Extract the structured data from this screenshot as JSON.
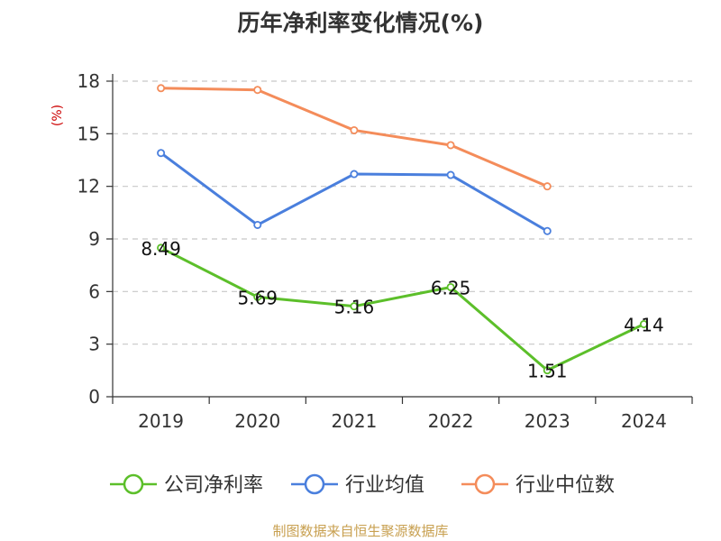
{
  "title": "历年净利率变化情况(%)",
  "source": "制图数据来自恒生聚源数据库",
  "chart_data": {
    "type": "line",
    "title": "历年净利率变化情况(%)",
    "ylabel": "(%)",
    "xlabel": "",
    "ylim": [
      0,
      18
    ],
    "yticks": [
      0,
      3,
      6,
      9,
      12,
      15,
      18
    ],
    "grid": true,
    "legend_position": "bottom",
    "categories": [
      "2019",
      "2020",
      "2021",
      "2022",
      "2023",
      "2024"
    ],
    "series": [
      {
        "name": "公司净利率",
        "color": "#5cbf2a",
        "values": [
          8.49,
          5.69,
          5.16,
          6.25,
          1.51,
          4.14
        ],
        "labels": [
          "8.49",
          "5.69",
          "5.16",
          "6.25",
          "1.51",
          "4.14"
        ]
      },
      {
        "name": "行业均值",
        "color": "#4a7fdd",
        "values": [
          13.9,
          9.8,
          12.7,
          12.65,
          9.45,
          null
        ]
      },
      {
        "name": "行业中位数",
        "color": "#f48c5a",
        "values": [
          17.6,
          17.5,
          15.2,
          14.35,
          12.0,
          null
        ]
      }
    ]
  }
}
